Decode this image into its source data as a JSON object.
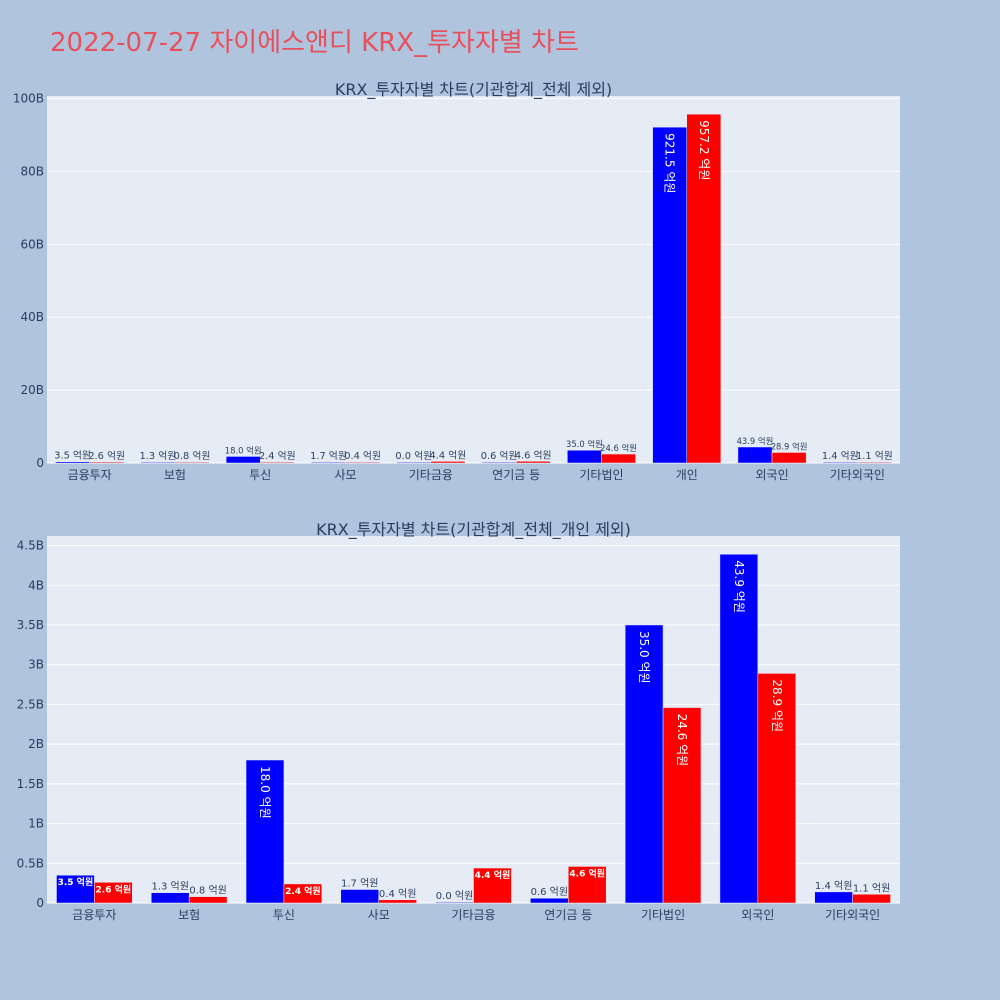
{
  "title": "2022-07-27 자이에스앤디 KRX_투자자별 차트",
  "colors": {
    "buy": "#0000ff",
    "sell": "#ff0000",
    "plot_bg": "#e5ecf6",
    "page_bg": "#b0c4de",
    "title": "#e8505b"
  },
  "chart_data": [
    {
      "type": "bar",
      "title": "KRX_투자자별 차트(기관합계_전체 제외)",
      "categories": [
        "금융투자",
        "보험",
        "투신",
        "사모",
        "기타금융",
        "연기금 등",
        "기타법인",
        "개인",
        "외국인",
        "기타외국인"
      ],
      "series": [
        {
          "values": [
            0.35,
            0.13,
            1.8,
            0.17,
            0.0,
            0.06,
            3.5,
            92.15,
            4.39,
            0.14
          ],
          "labels": [
            "3.5 억원",
            "1.3 억원",
            "18.0 억원",
            "1.7 억원",
            "0.0 억원",
            "0.6 억원",
            "35.0 억원",
            "921.5 억원",
            "43.9 억원",
            "1.4 억원"
          ]
        },
        {
          "values": [
            0.26,
            0.08,
            0.24,
            0.04,
            0.44,
            0.46,
            2.46,
            95.72,
            2.89,
            0.11
          ],
          "labels": [
            "2.6 억원",
            "0.8 억원",
            "2.4 억원",
            "0.4 억원",
            "4.4 억원",
            "4.6 억원",
            "24.6 억원",
            "957.2 억원",
            "28.9 억원",
            "1.1 억원"
          ]
        }
      ],
      "yticks": [
        "0",
        "20B",
        "40B",
        "60B",
        "80B",
        "100B"
      ],
      "ytick_values": [
        0,
        20,
        40,
        60,
        80,
        100
      ],
      "ylim": [
        0,
        100.7
      ],
      "grid": true
    },
    {
      "type": "bar",
      "title": "KRX_투자자별 차트(기관합계_전체_개인 제외)",
      "categories": [
        "금융투자",
        "보험",
        "투신",
        "사모",
        "기타금융",
        "연기금 등",
        "기타법인",
        "외국인",
        "기타외국인"
      ],
      "series": [
        {
          "values": [
            0.35,
            0.13,
            1.8,
            0.17,
            0.0,
            0.06,
            3.5,
            4.39,
            0.14
          ],
          "labels": [
            "3.5 억원",
            "1.3 억원",
            "18.0 억원",
            "1.7 억원",
            "0.0 억원",
            "0.6 억원",
            "35.0 억원",
            "43.9 억원",
            "1.4 억원"
          ]
        },
        {
          "values": [
            0.26,
            0.08,
            0.24,
            0.04,
            0.44,
            0.46,
            2.46,
            2.89,
            0.11
          ],
          "labels": [
            "2.6 억원",
            "0.8 억원",
            "2.4 억원",
            "0.4 억원",
            "4.4 억원",
            "4.6 억원",
            "24.6 억원",
            "28.9 억원",
            "1.1 억원"
          ]
        }
      ],
      "yticks": [
        "0",
        "0.5B",
        "1B",
        "1.5B",
        "2B",
        "2.5B",
        "3B",
        "3.5B",
        "4B",
        "4.5B"
      ],
      "ytick_values": [
        0,
        0.5,
        1,
        1.5,
        2,
        2.5,
        3,
        3.5,
        4,
        4.5
      ],
      "ylim": [
        0,
        4.62
      ],
      "grid": true
    }
  ]
}
